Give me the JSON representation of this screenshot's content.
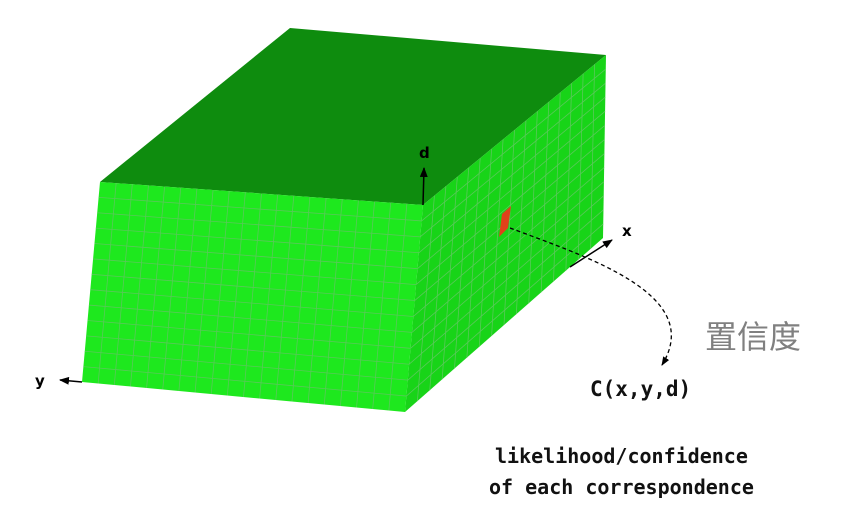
{
  "axes": {
    "d": "d",
    "x": "x",
    "y": "y"
  },
  "cost_volume": {
    "top_color": "#0e8c0e",
    "front_color": "#1ee81e",
    "side_color": "#18d418",
    "grid_color": "#5ac85a",
    "highlight_color": "#e0401a"
  },
  "label_cn": "置信度",
  "formula": "C(x,y,d)",
  "caption": {
    "line1": "likelihood/confidence",
    "line2": "of each correspondence"
  }
}
